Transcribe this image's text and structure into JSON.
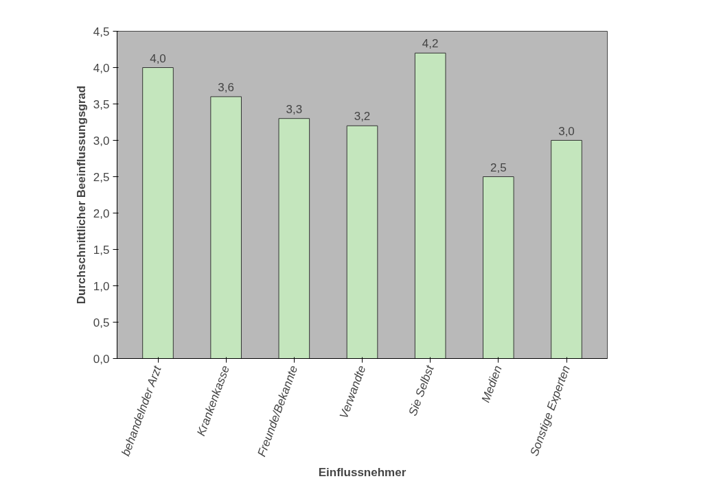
{
  "chart_data": {
    "type": "bar",
    "xlabel": "Einflussnehmer",
    "ylabel": "Durchschnittlicher Beeinflussungsgrad",
    "categories": [
      "behandelnder Arzt",
      "Krankenkasse",
      "Freunde/Bekannte",
      "Verwandte",
      "Sie Selbst",
      "Medien",
      "Sonstige Experten"
    ],
    "values": [
      4.0,
      3.6,
      3.3,
      3.2,
      4.2,
      2.5,
      3.0
    ],
    "value_labels": [
      "4,0",
      "3,6",
      "3,3",
      "3,2",
      "4,2",
      "2,5",
      "3,0"
    ],
    "color": "#c4e6bd",
    "ylim": [
      0,
      4.5
    ],
    "yticks": [
      {
        "value": 0,
        "label": "0,0"
      },
      {
        "value": 0.5,
        "label": "0,5"
      },
      {
        "value": 1,
        "label": "1,0"
      },
      {
        "value": 1.5,
        "label": "1,5"
      },
      {
        "value": 2,
        "label": "2,0"
      },
      {
        "value": 2.5,
        "label": "2,5"
      },
      {
        "value": 3,
        "label": "3,0"
      },
      {
        "value": 3.5,
        "label": "3,5"
      },
      {
        "value": 4,
        "label": "4,0"
      },
      {
        "value": 4.5,
        "label": "4,5"
      }
    ],
    "grid": false
  }
}
